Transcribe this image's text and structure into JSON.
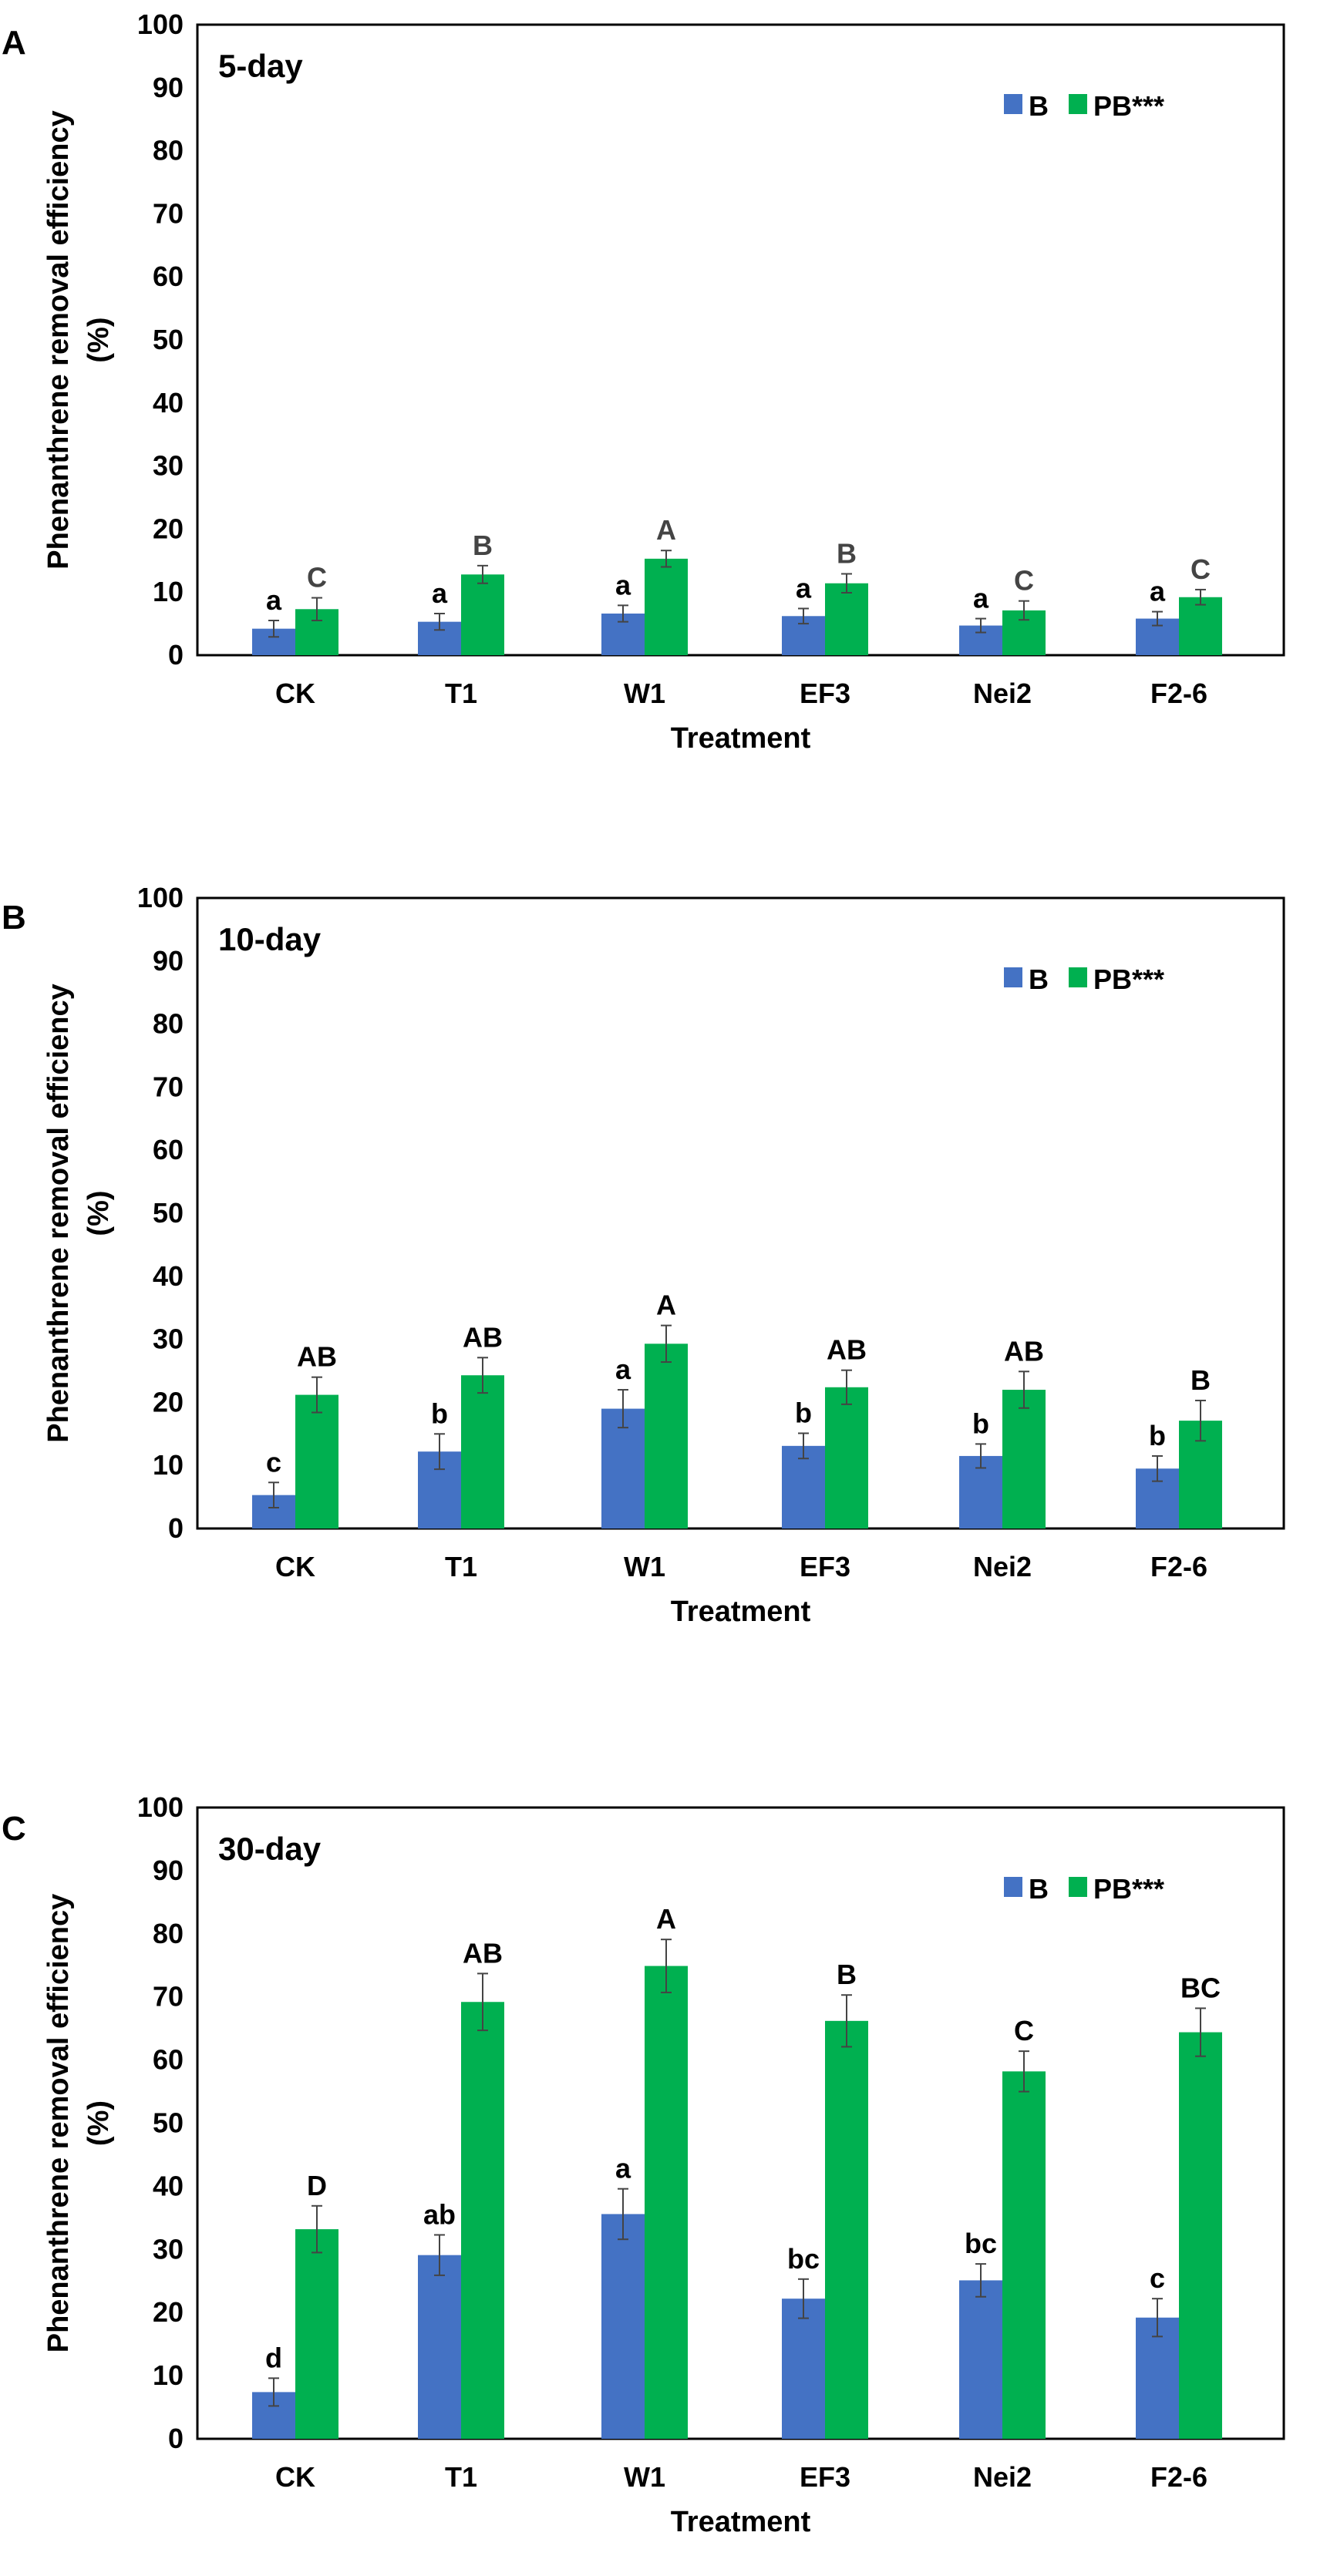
{
  "colors": {
    "B": "#4472C4",
    "PB": "#00B050",
    "frame": "#000000",
    "error": "#444444"
  },
  "chart_data": [
    {
      "panel": "A",
      "type": "bar",
      "title": "5-day",
      "xlabel": "Treatment",
      "ylabel": "Phenanthrene removal efficiency (%)",
      "ylim": [
        0,
        100
      ],
      "yticks": [
        "0",
        "10",
        "20",
        "30",
        "40",
        "50",
        "60",
        "70",
        "80",
        "90",
        "100"
      ],
      "categories": [
        "CK",
        "T1",
        "W1",
        "EF3",
        "Nei2",
        "F2-6"
      ],
      "legend": {
        "position": "top-right",
        "labels": [
          "B",
          "PB***"
        ]
      },
      "series": [
        {
          "name": "B",
          "values": [
            4.2,
            5.3,
            6.6,
            6.2,
            4.7,
            5.8
          ],
          "errors": [
            1.3,
            1.3,
            1.3,
            1.2,
            1.1,
            1.1
          ],
          "letters": [
            "a",
            "a",
            "a",
            "a",
            "a",
            "a"
          ]
        },
        {
          "name": "PB***",
          "values": [
            7.3,
            12.8,
            15.3,
            11.4,
            7.1,
            9.2
          ],
          "errors": [
            1.8,
            1.4,
            1.3,
            1.5,
            1.5,
            1.2
          ],
          "letters": [
            "C",
            "B",
            "A",
            "B",
            "C",
            "C"
          ]
        }
      ]
    },
    {
      "panel": "B",
      "type": "bar",
      "title": "10-day",
      "xlabel": "Treatment",
      "ylabel": "Phenanthrene removal efficiency (%)",
      "ylim": [
        0,
        100
      ],
      "yticks": [
        "0",
        "10",
        "20",
        "30",
        "40",
        "50",
        "60",
        "70",
        "80",
        "90",
        "100"
      ],
      "categories": [
        "CK",
        "T1",
        "W1",
        "EF3",
        "Nei2",
        "F2-6"
      ],
      "legend": {
        "position": "top-right",
        "labels": [
          "B",
          "PB***"
        ]
      },
      "series": [
        {
          "name": "B",
          "values": [
            5.3,
            12.2,
            19.0,
            13.1,
            11.5,
            9.5
          ],
          "errors": [
            2.0,
            2.8,
            3.0,
            2.0,
            1.9,
            2.0
          ],
          "letters": [
            "c",
            "b",
            "a",
            "b",
            "b",
            "b"
          ]
        },
        {
          "name": "PB***",
          "values": [
            21.2,
            24.3,
            29.3,
            22.4,
            22.0,
            17.1
          ],
          "errors": [
            2.8,
            2.8,
            2.9,
            2.7,
            2.9,
            3.2
          ],
          "letters": [
            "AB",
            "AB",
            "A",
            "AB",
            "AB",
            "B"
          ]
        }
      ]
    },
    {
      "panel": "C",
      "type": "bar",
      "title": "30-day",
      "xlabel": "Treatment",
      "ylabel": "Phenanthrene removal efficiency (%)",
      "ylim": [
        0,
        100
      ],
      "yticks": [
        "0",
        "10",
        "20",
        "30",
        "40",
        "50",
        "60",
        "70",
        "80",
        "90",
        "100"
      ],
      "categories": [
        "CK",
        "T1",
        "W1",
        "EF3",
        "Nei2",
        "F2-6"
      ],
      "legend": {
        "position": "top-right",
        "labels": [
          "B",
          "PB***"
        ]
      },
      "series": [
        {
          "name": "B",
          "values": [
            7.4,
            29.1,
            35.6,
            22.2,
            25.1,
            19.2
          ],
          "errors": [
            2.2,
            3.2,
            4.0,
            3.1,
            2.6,
            3.0
          ],
          "letters": [
            "d",
            "ab",
            "a",
            "bc",
            "bc",
            "c"
          ]
        },
        {
          "name": "PB***",
          "values": [
            33.2,
            69.2,
            74.9,
            66.2,
            58.2,
            64.4
          ],
          "errors": [
            3.7,
            4.5,
            4.2,
            4.1,
            3.2,
            3.8
          ],
          "letters": [
            "D",
            "AB",
            "A",
            "B",
            "C",
            "BC"
          ]
        }
      ]
    }
  ]
}
